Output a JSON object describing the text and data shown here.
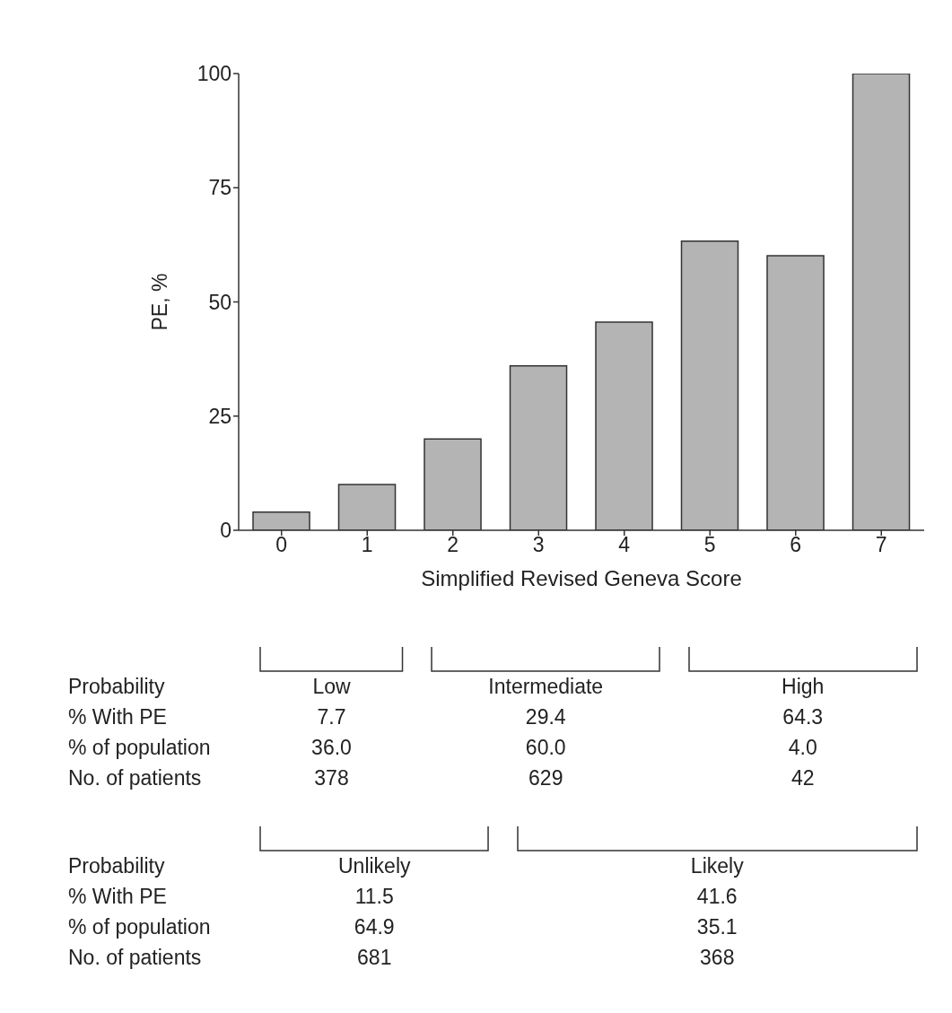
{
  "chart_data": {
    "type": "bar",
    "xlabel": "Simplified Revised Geneva Score",
    "ylabel": "PE, %",
    "categories": [
      "0",
      "1",
      "2",
      "3",
      "4",
      "5",
      "6",
      "7"
    ],
    "values": [
      4,
      10,
      20,
      36,
      45.6,
      63.3,
      60.1,
      100
    ],
    "color": "#b4b4b4",
    "ylim": [
      0,
      100
    ],
    "yticks": [
      0,
      25,
      50,
      75,
      100
    ],
    "grid": false,
    "legend": false,
    "annotations": [
      "Probability",
      "Low",
      "Intermediate",
      "High",
      "% With PE",
      "7.7",
      "29.4",
      "64.3",
      "% of population",
      "36.0",
      "60.0",
      "4.0",
      "No. of patients",
      "378",
      "629",
      "42",
      "Probability",
      "Unlikely",
      "Likely",
      "% With PE",
      "11.5",
      "41.6",
      "% of population",
      "64.9",
      "35.1",
      "No. of patients",
      "681",
      "368"
    ]
  }
}
